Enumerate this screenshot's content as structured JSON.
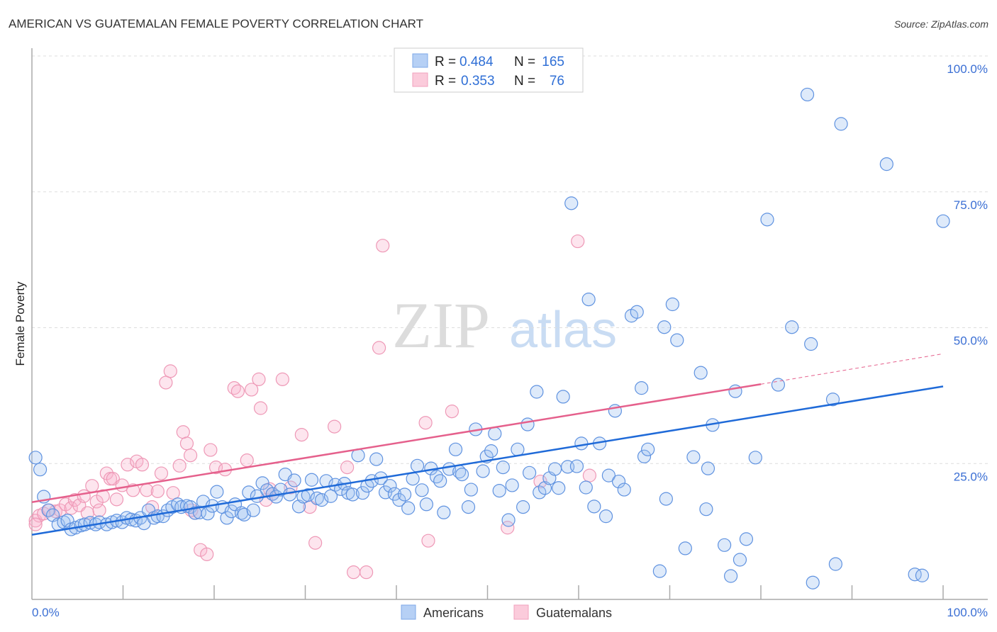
{
  "chart_data": {
    "type": "scatter",
    "title": "AMERICAN VS GUATEMALAN FEMALE POVERTY CORRELATION CHART",
    "source": "Source: ZipAtlas.com",
    "xlabel": "",
    "ylabel": "Female Poverty",
    "xlim": [
      0,
      100
    ],
    "ylim": [
      0,
      100
    ],
    "x_tick_labels": {
      "min": "0.0%",
      "max": "100.0%"
    },
    "y_ticks": [
      {
        "value": 100,
        "label": "100.0%"
      },
      {
        "value": 75,
        "label": "75.0%"
      },
      {
        "value": 50,
        "label": "50.0%"
      },
      {
        "value": 25,
        "label": "25.0%"
      }
    ],
    "grid": true,
    "legend_placement": "top-center",
    "watermark": "ZIPatlas",
    "series": [
      {
        "name": "Americans",
        "color": "#6f9fe6",
        "line_color": "#1f6ad8",
        "r_label": "R = ",
        "r_value": "0.484",
        "n_label": "N = ",
        "n_value": "165",
        "trend": {
          "x": [
            0,
            100
          ],
          "y": [
            11.9,
            39.2
          ]
        },
        "points": [
          [
            0.4,
            26.1
          ],
          [
            0.9,
            23.9
          ],
          [
            1.3,
            18.9
          ],
          [
            1.8,
            16.4
          ],
          [
            2.3,
            15.5
          ],
          [
            2.9,
            13.8
          ],
          [
            3.5,
            14.2
          ],
          [
            3.9,
            14.5
          ],
          [
            4.3,
            12.9
          ],
          [
            4.8,
            13.2
          ],
          [
            5.4,
            13.6
          ],
          [
            5.8,
            13.8
          ],
          [
            6.4,
            14.1
          ],
          [
            7.0,
            13.8
          ],
          [
            7.4,
            14.2
          ],
          [
            8.2,
            13.8
          ],
          [
            8.8,
            14.2
          ],
          [
            9.3,
            14.5
          ],
          [
            9.9,
            14.2
          ],
          [
            10.4,
            15.0
          ],
          [
            10.9,
            14.7
          ],
          [
            11.4,
            14.5
          ],
          [
            11.9,
            15.0
          ],
          [
            12.3,
            14.0
          ],
          [
            12.8,
            16.4
          ],
          [
            13.4,
            15.0
          ],
          [
            13.8,
            15.3
          ],
          [
            14.4,
            15.3
          ],
          [
            14.9,
            16.4
          ],
          [
            15.4,
            17.0
          ],
          [
            16.0,
            17.5
          ],
          [
            16.4,
            17.0
          ],
          [
            17.0,
            17.2
          ],
          [
            17.4,
            17.0
          ],
          [
            17.9,
            15.9
          ],
          [
            18.4,
            16.0
          ],
          [
            18.8,
            18.0
          ],
          [
            19.3,
            15.8
          ],
          [
            19.8,
            17.2
          ],
          [
            20.3,
            19.8
          ],
          [
            20.9,
            17.0
          ],
          [
            21.4,
            15.0
          ],
          [
            21.9,
            16.2
          ],
          [
            22.3,
            17.5
          ],
          [
            23.0,
            15.9
          ],
          [
            23.3,
            15.6
          ],
          [
            23.8,
            19.7
          ],
          [
            24.3,
            16.4
          ],
          [
            24.7,
            19.0
          ],
          [
            25.3,
            21.4
          ],
          [
            25.8,
            20.1
          ],
          [
            26.4,
            19.4
          ],
          [
            26.8,
            18.9
          ],
          [
            27.3,
            20.2
          ],
          [
            27.8,
            23.0
          ],
          [
            28.3,
            19.3
          ],
          [
            28.8,
            21.9
          ],
          [
            29.3,
            17.1
          ],
          [
            29.8,
            18.9
          ],
          [
            30.3,
            19.2
          ],
          [
            30.7,
            22.0
          ],
          [
            31.3,
            18.6
          ],
          [
            31.8,
            18.3
          ],
          [
            32.3,
            21.8
          ],
          [
            32.8,
            19.0
          ],
          [
            33.3,
            21.1
          ],
          [
            33.9,
            20.3
          ],
          [
            34.3,
            21.3
          ],
          [
            34.7,
            19.6
          ],
          [
            35.2,
            19.3
          ],
          [
            35.8,
            26.5
          ],
          [
            36.3,
            19.6
          ],
          [
            36.8,
            20.9
          ],
          [
            37.3,
            21.8
          ],
          [
            37.8,
            25.8
          ],
          [
            38.3,
            22.3
          ],
          [
            38.8,
            19.7
          ],
          [
            39.3,
            20.9
          ],
          [
            39.8,
            19.4
          ],
          [
            40.3,
            18.3
          ],
          [
            40.9,
            19.3
          ],
          [
            41.3,
            16.8
          ],
          [
            41.8,
            22.2
          ],
          [
            42.3,
            24.6
          ],
          [
            42.8,
            20.1
          ],
          [
            43.3,
            17.5
          ],
          [
            43.8,
            24.1
          ],
          [
            44.4,
            22.6
          ],
          [
            44.8,
            21.8
          ],
          [
            45.2,
            16.0
          ],
          [
            45.8,
            24.0
          ],
          [
            46.5,
            27.6
          ],
          [
            46.9,
            23.5
          ],
          [
            47.2,
            23.0
          ],
          [
            47.9,
            17.0
          ],
          [
            48.2,
            20.2
          ],
          [
            48.7,
            31.3
          ],
          [
            49.5,
            23.6
          ],
          [
            49.9,
            26.3
          ],
          [
            50.4,
            27.3
          ],
          [
            50.8,
            30.5
          ],
          [
            51.3,
            20.0
          ],
          [
            51.7,
            24.3
          ],
          [
            52.3,
            14.6
          ],
          [
            52.7,
            21.0
          ],
          [
            53.3,
            27.6
          ],
          [
            53.9,
            17.0
          ],
          [
            54.4,
            32.2
          ],
          [
            54.6,
            23.3
          ],
          [
            55.4,
            38.2
          ],
          [
            55.7,
            19.7
          ],
          [
            56.3,
            20.5
          ],
          [
            56.8,
            22.3
          ],
          [
            57.4,
            24.0
          ],
          [
            57.8,
            20.5
          ],
          [
            58.3,
            37.3
          ],
          [
            58.8,
            24.4
          ],
          [
            59.2,
            72.9
          ],
          [
            59.8,
            24.5
          ],
          [
            60.3,
            28.7
          ],
          [
            60.8,
            20.6
          ],
          [
            61.1,
            55.2
          ],
          [
            61.7,
            17.1
          ],
          [
            62.3,
            28.7
          ],
          [
            63.0,
            15.3
          ],
          [
            63.3,
            22.8
          ],
          [
            64.0,
            34.7
          ],
          [
            64.4,
            21.7
          ],
          [
            65.0,
            20.2
          ],
          [
            65.8,
            52.2
          ],
          [
            66.4,
            52.9
          ],
          [
            66.9,
            38.9
          ],
          [
            67.2,
            26.3
          ],
          [
            67.6,
            27.6
          ],
          [
            68.9,
            5.2
          ],
          [
            69.4,
            50.1
          ],
          [
            69.6,
            18.5
          ],
          [
            70.3,
            54.3
          ],
          [
            70.8,
            47.7
          ],
          [
            71.7,
            9.4
          ],
          [
            72.6,
            26.2
          ],
          [
            73.4,
            41.7
          ],
          [
            74.0,
            16.6
          ],
          [
            74.2,
            24.1
          ],
          [
            74.7,
            32.1
          ],
          [
            76.0,
            10.0
          ],
          [
            76.7,
            4.3
          ],
          [
            77.2,
            38.3
          ],
          [
            77.7,
            7.3
          ],
          [
            78.4,
            11.1
          ],
          [
            79.4,
            26.1
          ],
          [
            80.7,
            69.9
          ],
          [
            81.9,
            39.5
          ],
          [
            83.4,
            50.1
          ],
          [
            85.1,
            92.9
          ],
          [
            85.5,
            47.0
          ],
          [
            85.7,
            3.1
          ],
          [
            87.9,
            36.8
          ],
          [
            88.2,
            6.5
          ],
          [
            88.8,
            87.5
          ],
          [
            93.8,
            80.1
          ],
          [
            96.9,
            4.6
          ],
          [
            97.7,
            4.4
          ],
          [
            100,
            69.6
          ]
        ]
      },
      {
        "name": "Guatemalans",
        "color": "#f19ab8",
        "line_color": "#e5608c",
        "r_label": "R = ",
        "r_value": "0.353",
        "n_label": "N = ",
        "n_value": "76",
        "trend": {
          "x": [
            0,
            80
          ],
          "y": [
            17.9,
            39.6
          ],
          "dashed_to": {
            "x": 100,
            "y": 45.2
          }
        },
        "points": [
          [
            0.4,
            14.5
          ],
          [
            0.8,
            15.4
          ],
          [
            1.3,
            15.8
          ],
          [
            1.9,
            16.4
          ],
          [
            2.6,
            16.2
          ],
          [
            3.1,
            16.4
          ],
          [
            3.7,
            17.5
          ],
          [
            4.3,
            16.8
          ],
          [
            4.7,
            18.3
          ],
          [
            5.2,
            17.3
          ],
          [
            5.7,
            19.0
          ],
          [
            6.1,
            15.9
          ],
          [
            6.6,
            20.9
          ],
          [
            7.1,
            18.0
          ],
          [
            7.4,
            16.4
          ],
          [
            7.8,
            19.0
          ],
          [
            8.2,
            23.2
          ],
          [
            8.6,
            22.2
          ],
          [
            8.9,
            22.2
          ],
          [
            9.3,
            18.4
          ],
          [
            9.9,
            21.0
          ],
          [
            10.5,
            24.8
          ],
          [
            11.1,
            20.1
          ],
          [
            11.5,
            25.4
          ],
          [
            12.1,
            24.8
          ],
          [
            12.6,
            20.1
          ],
          [
            13.2,
            17.0
          ],
          [
            13.8,
            19.9
          ],
          [
            14.2,
            23.2
          ],
          [
            14.7,
            39.9
          ],
          [
            15.2,
            42.0
          ],
          [
            15.5,
            19.6
          ],
          [
            16.2,
            24.6
          ],
          [
            16.6,
            30.8
          ],
          [
            17.0,
            28.7
          ],
          [
            17.4,
            26.5
          ],
          [
            17.9,
            15.9
          ],
          [
            18.5,
            9.1
          ],
          [
            19.2,
            8.3
          ],
          [
            19.6,
            27.5
          ],
          [
            20.2,
            24.3
          ],
          [
            21.2,
            23.9
          ],
          [
            22.2,
            38.9
          ],
          [
            22.6,
            38.3
          ],
          [
            23.6,
            25.6
          ],
          [
            24.1,
            38.6
          ],
          [
            24.9,
            40.5
          ],
          [
            25.1,
            35.2
          ],
          [
            25.7,
            18.3
          ],
          [
            26.1,
            20.3
          ],
          [
            27.5,
            40.5
          ],
          [
            28.4,
            20.6
          ],
          [
            29.6,
            30.3
          ],
          [
            30.5,
            17.0
          ],
          [
            31.1,
            10.4
          ],
          [
            33.2,
            31.8
          ],
          [
            34.6,
            24.3
          ],
          [
            35.3,
            5.0
          ],
          [
            36.7,
            5.0
          ],
          [
            38.1,
            46.3
          ],
          [
            38.5,
            65.1
          ],
          [
            43.2,
            32.5
          ],
          [
            43.5,
            10.8
          ],
          [
            46.1,
            34.6
          ],
          [
            52.2,
            13.2
          ],
          [
            55.8,
            21.7
          ],
          [
            59.9,
            65.9
          ],
          [
            61.2,
            22.8
          ],
          [
            26.4,
            19.4
          ],
          [
            17.5,
            16.4
          ],
          [
            0.4,
            13.8
          ]
        ]
      }
    ]
  }
}
